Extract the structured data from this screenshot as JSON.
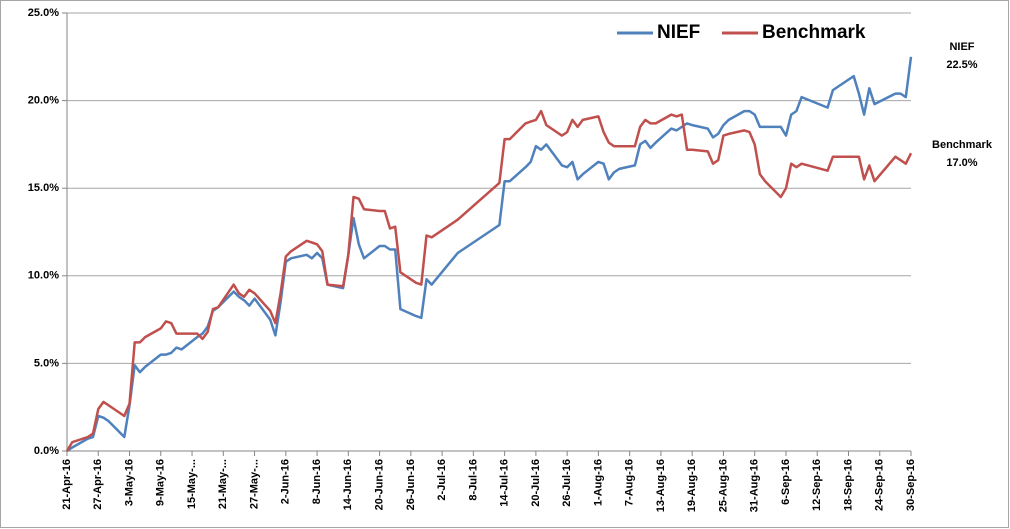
{
  "chart_data": {
    "type": "line",
    "x": [
      "2016-04-21",
      "2016-04-22",
      "2016-04-25",
      "2016-04-26",
      "2016-04-27",
      "2016-04-28",
      "2016-04-29",
      "2016-05-02",
      "2016-05-03",
      "2016-05-04",
      "2016-05-05",
      "2016-05-06",
      "2016-05-09",
      "2016-05-10",
      "2016-05-11",
      "2016-05-12",
      "2016-05-13",
      "2016-05-16",
      "2016-05-17",
      "2016-05-18",
      "2016-05-19",
      "2016-05-20",
      "2016-05-23",
      "2016-05-24",
      "2016-05-25",
      "2016-05-26",
      "2016-05-27",
      "2016-05-30",
      "2016-05-31",
      "2016-06-01",
      "2016-06-02",
      "2016-06-03",
      "2016-06-06",
      "2016-06-07",
      "2016-06-08",
      "2016-06-09",
      "2016-06-10",
      "2016-06-13",
      "2016-06-14",
      "2016-06-15",
      "2016-06-16",
      "2016-06-17",
      "2016-06-20",
      "2016-06-21",
      "2016-06-22",
      "2016-06-23",
      "2016-06-24",
      "2016-06-27",
      "2016-06-28",
      "2016-06-29",
      "2016-06-30",
      "2016-07-05",
      "2016-07-13",
      "2016-07-14",
      "2016-07-15",
      "2016-07-18",
      "2016-07-19",
      "2016-07-20",
      "2016-07-21",
      "2016-07-22",
      "2016-07-25",
      "2016-07-26",
      "2016-07-27",
      "2016-07-28",
      "2016-07-29",
      "2016-08-01",
      "2016-08-02",
      "2016-08-03",
      "2016-08-04",
      "2016-08-05",
      "2016-08-08",
      "2016-08-09",
      "2016-08-10",
      "2016-08-11",
      "2016-08-12",
      "2016-08-15",
      "2016-08-16",
      "2016-08-17",
      "2016-08-18",
      "2016-08-19",
      "2016-08-22",
      "2016-08-23",
      "2016-08-24",
      "2016-08-25",
      "2016-08-26",
      "2016-08-29",
      "2016-08-30",
      "2016-08-31",
      "2016-09-01",
      "2016-09-02",
      "2016-09-05",
      "2016-09-06",
      "2016-09-07",
      "2016-09-08",
      "2016-09-09",
      "2016-09-14",
      "2016-09-15",
      "2016-09-19",
      "2016-09-20",
      "2016-09-21",
      "2016-09-22",
      "2016-09-23",
      "2016-09-27",
      "2016-09-28",
      "2016-09-29",
      "2016-09-30"
    ],
    "series": [
      {
        "name": "NIEF",
        "color": "#4f81bd",
        "end_label": "22.5%",
        "values": [
          0,
          0.2,
          0.7,
          0.8,
          2.0,
          1.9,
          1.7,
          0.8,
          2.6,
          4.9,
          4.5,
          4.8,
          5.5,
          5.5,
          5.6,
          5.9,
          5.8,
          6.5,
          6.7,
          7.1,
          8.0,
          8.2,
          9.1,
          8.8,
          8.6,
          8.3,
          8.7,
          7.5,
          6.6,
          8.5,
          10.8,
          11.0,
          11.2,
          11.0,
          11.3,
          11.0,
          9.5,
          9.3,
          11.2,
          13.3,
          11.8,
          11.0,
          11.7,
          11.7,
          11.5,
          11.5,
          8.1,
          7.7,
          7.6,
          9.8,
          9.5,
          11.3,
          12.9,
          15.4,
          15.4,
          16.2,
          16.5,
          17.4,
          17.2,
          17.5,
          16.3,
          16.2,
          16.5,
          15.5,
          15.8,
          16.5,
          16.4,
          15.5,
          15.9,
          16.1,
          16.3,
          17.5,
          17.7,
          17.3,
          17.6,
          18.4,
          18.3,
          18.5,
          18.7,
          18.6,
          18.4,
          17.9,
          18.1,
          18.6,
          18.9,
          19.4,
          19.4,
          19.2,
          18.5,
          18.5,
          18.5,
          18.0,
          19.2,
          19.4,
          20.2,
          19.6,
          20.6,
          21.4,
          20.4,
          19.2,
          20.7,
          19.8,
          20.4,
          20.4,
          20.2,
          22.5
        ]
      },
      {
        "name": "Benchmark",
        "color": "#c0504d",
        "end_label": "17.0%",
        "values": [
          0,
          0.5,
          0.8,
          1.0,
          2.4,
          2.8,
          2.6,
          2.0,
          2.7,
          6.2,
          6.2,
          6.5,
          7.0,
          7.4,
          7.3,
          6.7,
          6.7,
          6.7,
          6.4,
          6.8,
          8.1,
          8.2,
          9.5,
          9.0,
          8.8,
          9.2,
          9.0,
          8.0,
          7.3,
          9.0,
          11.1,
          11.4,
          12.0,
          11.9,
          11.8,
          11.4,
          9.5,
          9.4,
          11.2,
          14.5,
          14.4,
          13.8,
          13.7,
          13.7,
          12.7,
          12.8,
          10.2,
          9.6,
          9.5,
          12.3,
          12.2,
          13.2,
          15.3,
          17.8,
          17.8,
          18.7,
          18.8,
          18.9,
          19.4,
          18.6,
          18.0,
          18.2,
          18.9,
          18.5,
          18.9,
          19.1,
          18.2,
          17.6,
          17.4,
          17.4,
          17.4,
          18.5,
          18.9,
          18.7,
          18.7,
          19.2,
          19.1,
          19.2,
          17.2,
          17.2,
          17.1,
          16.4,
          16.6,
          18.0,
          18.1,
          18.3,
          18.2,
          17.5,
          15.8,
          15.4,
          14.5,
          15.0,
          16.4,
          16.2,
          16.4,
          16.0,
          16.8,
          16.8,
          16.8,
          15.5,
          16.3,
          15.4,
          16.8,
          16.6,
          16.4,
          17.0
        ]
      }
    ],
    "xlim": [
      "2016-04-21",
      "2016-09-30"
    ],
    "xticks": [
      {
        "value": "2016-04-21",
        "label": "21-Apr-16"
      },
      {
        "value": "2016-04-27",
        "label": "27-Apr-16"
      },
      {
        "value": "2016-05-03",
        "label": "3-May-16"
      },
      {
        "value": "2016-05-09",
        "label": "9-May-16"
      },
      {
        "value": "2016-05-15",
        "label": "15-May-..."
      },
      {
        "value": "2016-05-21",
        "label": "21-May-..."
      },
      {
        "value": "2016-05-27",
        "label": "27-May-..."
      },
      {
        "value": "2016-06-02",
        "label": "2-Jun-16"
      },
      {
        "value": "2016-06-08",
        "label": "8-Jun-16"
      },
      {
        "value": "2016-06-14",
        "label": "14-Jun-16"
      },
      {
        "value": "2016-06-20",
        "label": "20-Jun-16"
      },
      {
        "value": "2016-06-26",
        "label": "26-Jun-16"
      },
      {
        "value": "2016-07-02",
        "label": "2-Jul-16"
      },
      {
        "value": "2016-07-08",
        "label": "8-Jul-16"
      },
      {
        "value": "2016-07-14",
        "label": "14-Jul-16"
      },
      {
        "value": "2016-07-20",
        "label": "20-Jul-16"
      },
      {
        "value": "2016-07-26",
        "label": "26-Jul-16"
      },
      {
        "value": "2016-08-01",
        "label": "1-Aug-16"
      },
      {
        "value": "2016-08-07",
        "label": "7-Aug-16"
      },
      {
        "value": "2016-08-13",
        "label": "13-Aug-16"
      },
      {
        "value": "2016-08-19",
        "label": "19-Aug-16"
      },
      {
        "value": "2016-08-25",
        "label": "25-Aug-16"
      },
      {
        "value": "2016-08-31",
        "label": "31-Aug-16"
      },
      {
        "value": "2016-09-06",
        "label": "6-Sep-16"
      },
      {
        "value": "2016-09-12",
        "label": "12-Sep-16"
      },
      {
        "value": "2016-09-18",
        "label": "18-Sep-16"
      },
      {
        "value": "2016-09-24",
        "label": "24-Sep-16"
      },
      {
        "value": "2016-09-30",
        "label": "30-Sep-16"
      }
    ],
    "ylim": [
      0,
      25
    ],
    "yticks": [
      {
        "value": 0,
        "label": "0.0%"
      },
      {
        "value": 5,
        "label": "5.0%"
      },
      {
        "value": 10,
        "label": "10.0%"
      },
      {
        "value": 15,
        "label": "15.0%"
      },
      {
        "value": 20,
        "label": "20.0%"
      },
      {
        "value": 25,
        "label": "25.0%"
      }
    ],
    "grid": true,
    "legend": "top-right"
  }
}
